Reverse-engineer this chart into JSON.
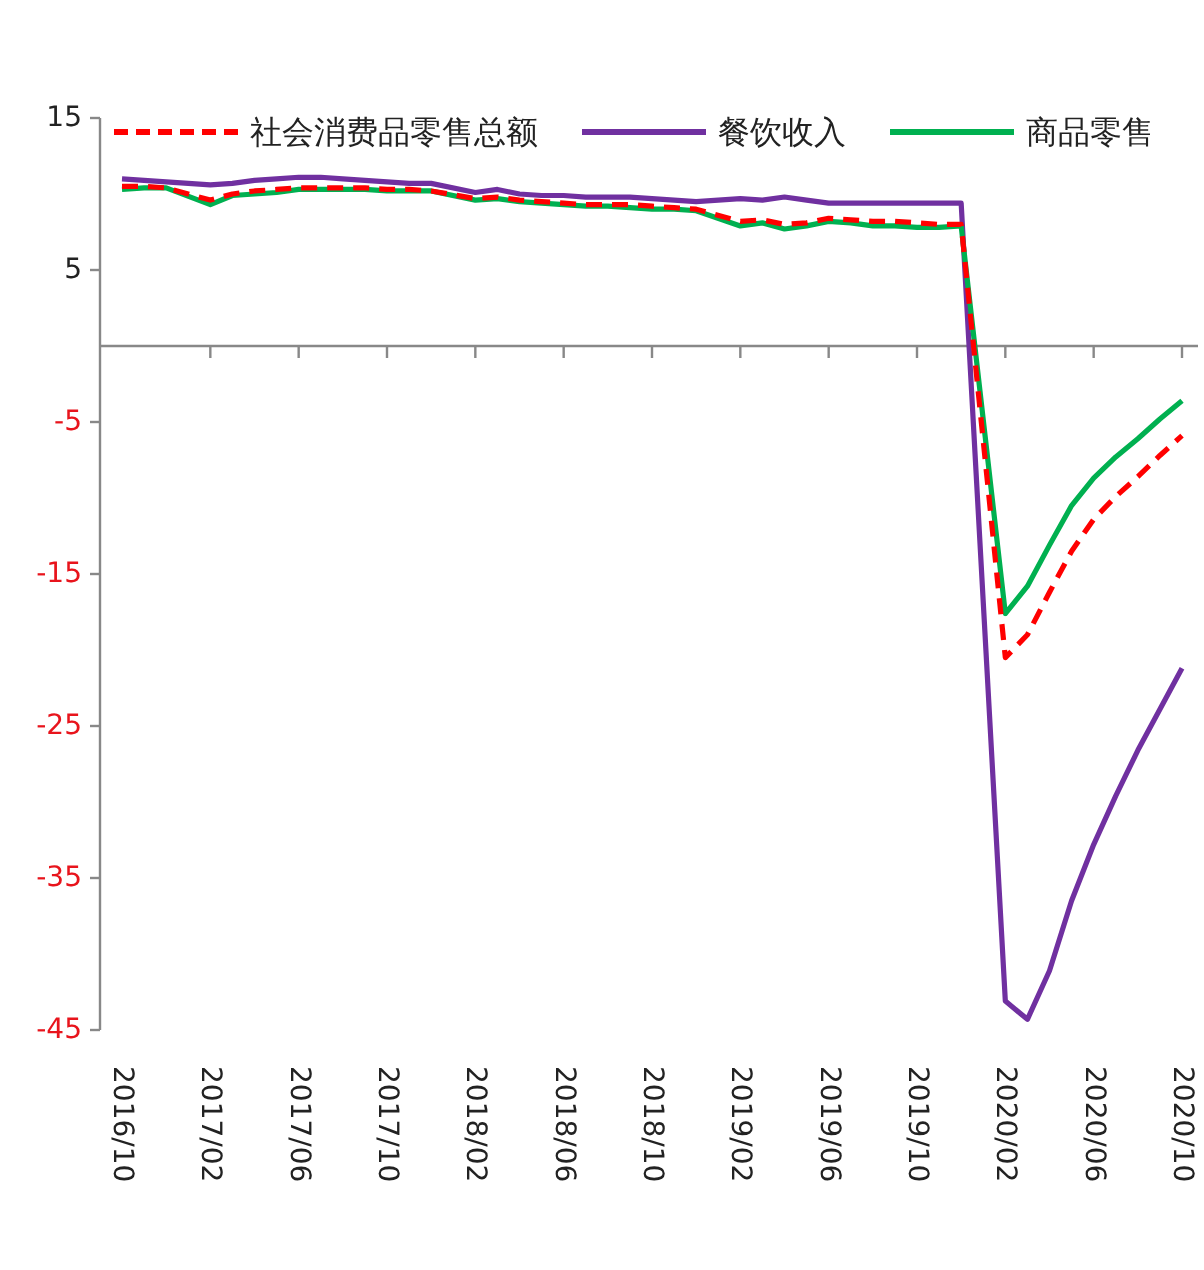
{
  "chart_data": {
    "type": "line",
    "x": [
      "2016-10",
      "2016-11",
      "2016-12",
      "2017-02",
      "2017-03",
      "2017-04",
      "2017-05",
      "2017-06",
      "2017-07",
      "2017-08",
      "2017-09",
      "2017-10",
      "2017-11",
      "2017-12",
      "2018-02",
      "2018-03",
      "2018-04",
      "2018-05",
      "2018-06",
      "2018-07",
      "2018-08",
      "2018-09",
      "2018-10",
      "2018-11",
      "2018-12",
      "2019-02",
      "2019-03",
      "2019-04",
      "2019-05",
      "2019-06",
      "2019-07",
      "2019-08",
      "2019-09",
      "2019-10",
      "2019-11",
      "2019-12",
      "2020-02",
      "2020-03",
      "2020-04",
      "2020-05",
      "2020-06",
      "2020-07",
      "2020-08",
      "2020-09",
      "2020-10"
    ],
    "series": [
      {
        "name": "社会消费品零售总额",
        "color": "#ff0000",
        "line_style": "dashed",
        "values": [
          10.5,
          10.5,
          10.4,
          9.6,
          10.0,
          10.2,
          10.3,
          10.4,
          10.4,
          10.4,
          10.4,
          10.3,
          10.3,
          10.2,
          9.7,
          9.8,
          9.6,
          9.5,
          9.4,
          9.3,
          9.3,
          9.3,
          9.2,
          9.1,
          9.0,
          8.2,
          8.3,
          8.0,
          8.1,
          8.4,
          8.3,
          8.2,
          8.2,
          8.1,
          8.0,
          8.0,
          -20.5,
          -19.0,
          -16.2,
          -13.5,
          -11.4,
          -9.9,
          -8.6,
          -7.2,
          -5.9
        ]
      },
      {
        "name": "餐饮收入",
        "color": "#7030a0",
        "line_style": "solid",
        "values": [
          11.0,
          10.9,
          10.8,
          10.6,
          10.7,
          10.9,
          11.0,
          11.1,
          11.1,
          11.0,
          10.9,
          10.8,
          10.7,
          10.7,
          10.1,
          10.3,
          10.0,
          9.9,
          9.9,
          9.8,
          9.8,
          9.8,
          9.7,
          9.6,
          9.5,
          9.7,
          9.6,
          9.8,
          9.6,
          9.4,
          9.4,
          9.4,
          9.4,
          9.4,
          9.4,
          9.4,
          -43.1,
          -44.3,
          -41.1,
          -36.5,
          -32.8,
          -29.6,
          -26.6,
          -23.9,
          -21.2
        ]
      },
      {
        "name": "商品零售",
        "color": "#00b050",
        "line_style": "solid",
        "values": [
          10.3,
          10.4,
          10.4,
          9.3,
          9.9,
          10.0,
          10.1,
          10.3,
          10.3,
          10.3,
          10.3,
          10.2,
          10.2,
          10.2,
          9.6,
          9.7,
          9.5,
          9.4,
          9.3,
          9.2,
          9.2,
          9.1,
          9.0,
          9.0,
          8.9,
          7.9,
          8.1,
          7.7,
          7.9,
          8.2,
          8.1,
          7.9,
          7.9,
          7.8,
          7.8,
          7.9,
          -17.6,
          -15.8,
          -13.1,
          -10.5,
          -8.7,
          -7.3,
          -6.1,
          -4.8,
          -3.6
        ]
      }
    ],
    "xlim": [
      "2016-10",
      "2020-10"
    ],
    "xticks": [
      {
        "value": "2016-10",
        "label": "2016/10"
      },
      {
        "value": "2017-02",
        "label": "2017/02"
      },
      {
        "value": "2017-06",
        "label": "2017/06"
      },
      {
        "value": "2017-10",
        "label": "2017/10"
      },
      {
        "value": "2018-02",
        "label": "2018/02"
      },
      {
        "value": "2018-06",
        "label": "2018/06"
      },
      {
        "value": "2018-10",
        "label": "2018/10"
      },
      {
        "value": "2019-02",
        "label": "2019/02"
      },
      {
        "value": "2019-06",
        "label": "2019/06"
      },
      {
        "value": "2019-10",
        "label": "2019/10"
      },
      {
        "value": "2020-02",
        "label": "2020/02"
      },
      {
        "value": "2020-06",
        "label": "2020/06"
      },
      {
        "value": "2020-10",
        "label": "2020/10"
      }
    ],
    "ylim": [
      -45,
      15
    ],
    "yticks": [
      15,
      5,
      -5,
      -15,
      -25,
      -35,
      -45
    ],
    "grid": false,
    "legend": "top",
    "marker": "none"
  }
}
